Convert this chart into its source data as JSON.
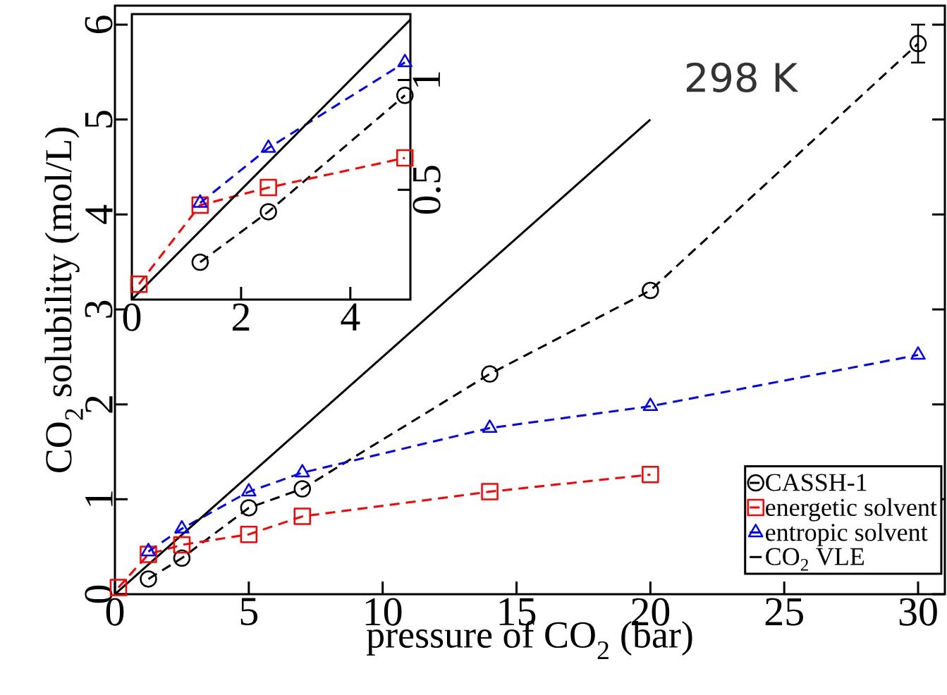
{
  "chart_data": [
    {
      "type": "line",
      "xlabel": "pressure of CO$_{2}$ (bar)",
      "ylabel": "CO$_{2}$ solubility (mol/L)",
      "annotations": [
        "298 K"
      ],
      "xlim": [
        0,
        31
      ],
      "ylim": [
        0,
        6.2
      ],
      "xticks": [
        0,
        5,
        10,
        15,
        20,
        25,
        30
      ],
      "yticks": [
        0,
        1,
        2,
        3,
        4,
        5,
        6
      ],
      "legend": "bottom right",
      "series": [
        {
          "name": "CASSH-1",
          "color": "#000000",
          "marker": "circle",
          "line_style": "dashed",
          "x": [
            1.25,
            2.5,
            5,
            7,
            14,
            20,
            30
          ],
          "values": [
            0.16,
            0.38,
            0.91,
            1.11,
            2.32,
            3.2,
            5.8
          ],
          "errors": [
            null,
            null,
            null,
            null,
            null,
            null,
            0.2
          ]
        },
        {
          "name": "energetic solvent",
          "color": "#ff0000",
          "marker": "square",
          "line_style": "dashed",
          "x": [
            0.13,
            1.25,
            2.5,
            5,
            7,
            14,
            20
          ],
          "values": [
            0.07,
            0.42,
            0.52,
            0.63,
            0.82,
            1.08,
            1.26
          ]
        },
        {
          "name": "entropic solvent",
          "color": "#0000ff",
          "marker": "triangle",
          "line_style": "dashed",
          "x": [
            1.25,
            2.5,
            5,
            7,
            14,
            20,
            30
          ],
          "values": [
            0.45,
            0.69,
            1.08,
            1.28,
            1.75,
            1.98,
            2.52
          ]
        },
        {
          "name": "CO$_{2}$ VLE",
          "color": "#000000",
          "marker": "none",
          "line_style": "solid",
          "x": [
            0,
            20
          ],
          "values": [
            0,
            5
          ]
        }
      ]
    },
    {
      "type": "line",
      "xlim": [
        0,
        5.1
      ],
      "ylim": [
        0,
        1.3
      ],
      "xticks": [
        0,
        2,
        4
      ],
      "yticks": [
        0.5,
        1
      ],
      "series": [
        {
          "color": "#000000",
          "marker": "circle",
          "line_style": "dashed",
          "x": [
            1.25,
            2.5,
            5
          ],
          "values": [
            0.17,
            0.4,
            0.93
          ]
        },
        {
          "color": "#ff0000",
          "marker": "square",
          "line_style": "dashed",
          "x": [
            0.13,
            1.25,
            2.5,
            5
          ],
          "values": [
            0.07,
            0.43,
            0.51,
            0.645
          ]
        },
        {
          "color": "#0000ff",
          "marker": "triangle",
          "line_style": "dashed",
          "x": [
            1.25,
            2.5,
            5
          ],
          "values": [
            0.44,
            0.69,
            1.08
          ]
        },
        {
          "color": "#000000",
          "marker": "none",
          "line_style": "solid",
          "x": [
            0,
            5.1
          ],
          "values": [
            0,
            1.275
          ]
        }
      ]
    }
  ]
}
